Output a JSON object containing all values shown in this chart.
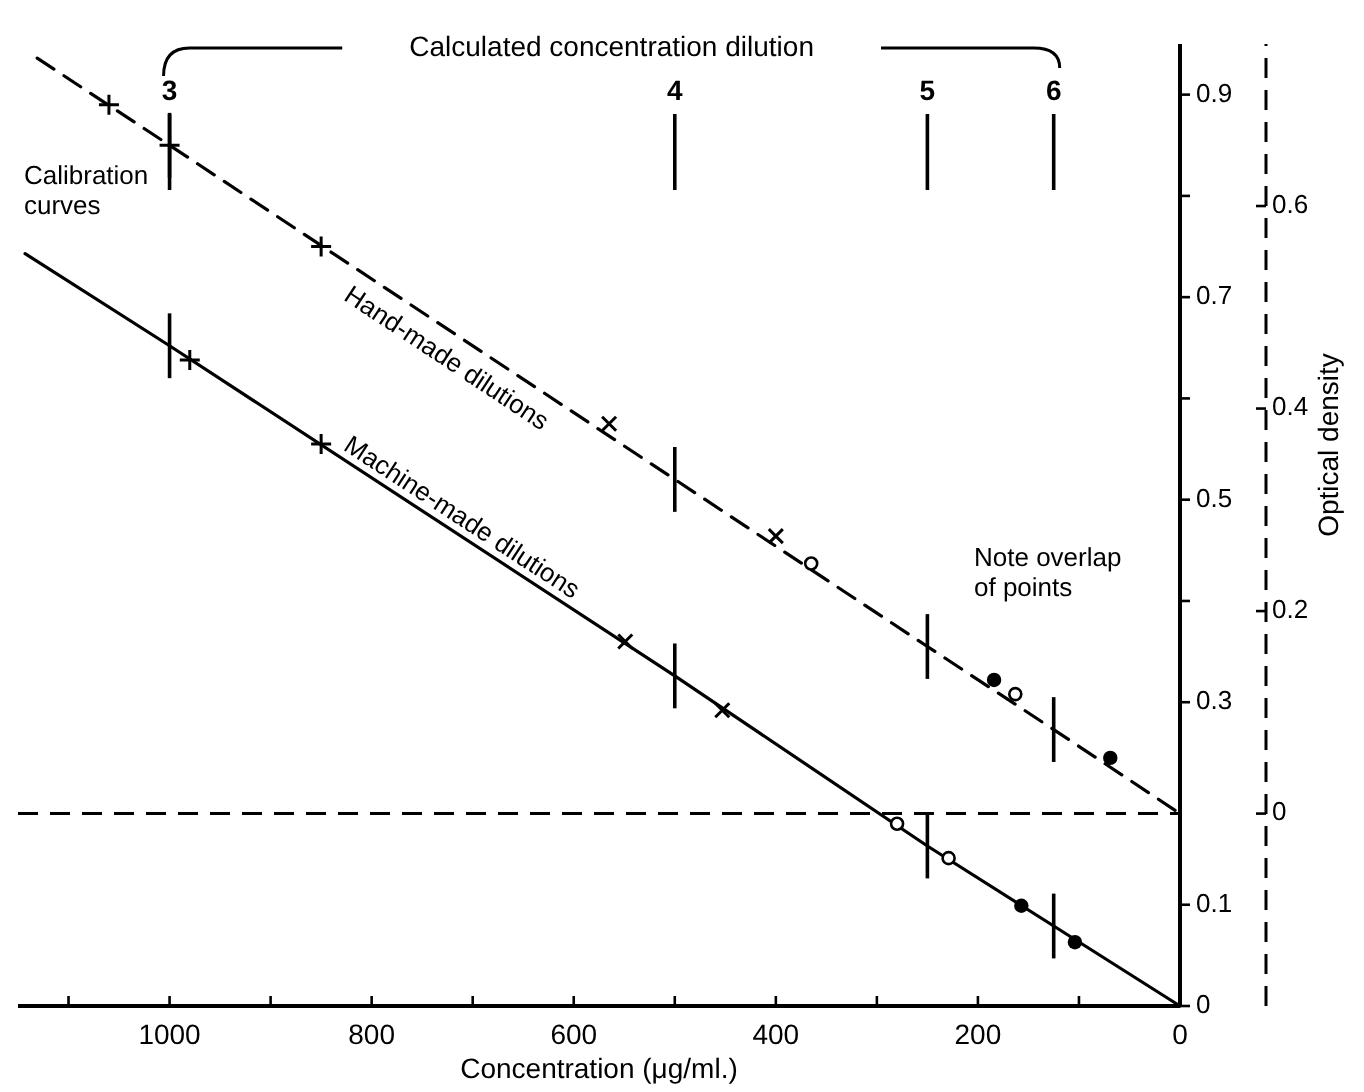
{
  "chart_data": {
    "type": "line",
    "xlabel": "Concentration (μg/ml.)",
    "y2label": "Optical density",
    "xlim": [
      1150,
      0
    ],
    "xticks": [
      {
        "value": 1100,
        "label": null
      },
      1000,
      {
        "value": 900,
        "label": null
      },
      800,
      {
        "value": 700,
        "label": null
      },
      600,
      {
        "value": 500,
        "label": null
      },
      400,
      {
        "value": 300,
        "label": null
      },
      200,
      {
        "value": 100,
        "label": null
      },
      0
    ],
    "ylim": [
      0,
      0.95
    ],
    "yticks": [
      0,
      0.1,
      0.3,
      {
        "value": 0.4,
        "label": null
      },
      0.5,
      {
        "value": 0.6,
        "label": null
      },
      0.7,
      {
        "value": 0.8,
        "label": null
      },
      0.9
    ],
    "y2lim": [
      -0.19,
      0.76
    ],
    "y2ticks": [
      0,
      0.2,
      0.4,
      0.6
    ],
    "ref_lines": [
      {
        "axis": "y2",
        "value": 0,
        "line_style": "dashed",
        "color": "#000000"
      }
    ],
    "annotations": [
      "Calibration curves",
      "Note overlap of points",
      "Calculated concentration dilution",
      {
        "text": "3",
        "x": 1000
      },
      {
        "text": "4",
        "x": 500
      },
      {
        "text": "5",
        "x": 250
      },
      {
        "text": "6",
        "x": 125
      }
    ],
    "series": [
      {
        "name": "Hand-made dilutions",
        "axis": "y2",
        "line_style": "dashed",
        "marker": "none",
        "color": "#000000",
        "x": [
          1131,
          1000,
          500,
          250,
          125,
          0
        ],
        "values": [
          0.746,
          0.66,
          0.33,
          0.165,
          0.083,
          0
        ],
        "errors": [
          null,
          0.032,
          0.032,
          0.032,
          0.032,
          null
        ]
      },
      {
        "name": "Machine-made dilutions",
        "axis": "y",
        "line_style": "solid",
        "marker": "none",
        "color": "#000000",
        "x": [
          1143,
          1000,
          500,
          250,
          125,
          0
        ],
        "values": [
          0.743,
          0.652,
          0.326,
          0.158,
          0.079,
          0
        ],
        "errors": [
          null,
          0.032,
          0.032,
          0.032,
          0.032,
          null
        ]
      },
      {
        "type": "scatter",
        "axis": "y2",
        "marker": "plus",
        "color": "#000000",
        "x": [
          1060,
          1000,
          850
        ],
        "values": [
          0.7,
          0.66,
          0.56
        ]
      },
      {
        "type": "scatter",
        "axis": "y2",
        "marker": "cross",
        "color": "#000000",
        "x": [
          565,
          400
        ],
        "values": [
          0.385,
          0.274
        ]
      },
      {
        "type": "scatter",
        "axis": "y2",
        "marker": "open-circle",
        "color": "#000000",
        "x": [
          365,
          163
        ],
        "values": [
          0.247,
          0.118
        ]
      },
      {
        "type": "scatter",
        "axis": "y2",
        "marker": "circle",
        "color": "#000000",
        "x": [
          184,
          69
        ],
        "values": [
          0.132,
          0.055
        ]
      },
      {
        "type": "scatter",
        "axis": "y",
        "marker": "plus",
        "color": "#000000",
        "x": [
          980,
          850
        ],
        "values": [
          0.638,
          0.555
        ]
      },
      {
        "type": "scatter",
        "axis": "y",
        "marker": "cross",
        "color": "#000000",
        "x": [
          549,
          453
        ],
        "values": [
          0.36,
          0.292
        ]
      },
      {
        "type": "scatter",
        "axis": "y",
        "marker": "open-circle",
        "color": "#000000",
        "x": [
          280,
          229
        ],
        "values": [
          0.18,
          0.146
        ]
      },
      {
        "type": "scatter",
        "axis": "y",
        "marker": "circle",
        "color": "#000000",
        "x": [
          157,
          104
        ],
        "values": [
          0.099,
          0.063
        ]
      }
    ]
  }
}
